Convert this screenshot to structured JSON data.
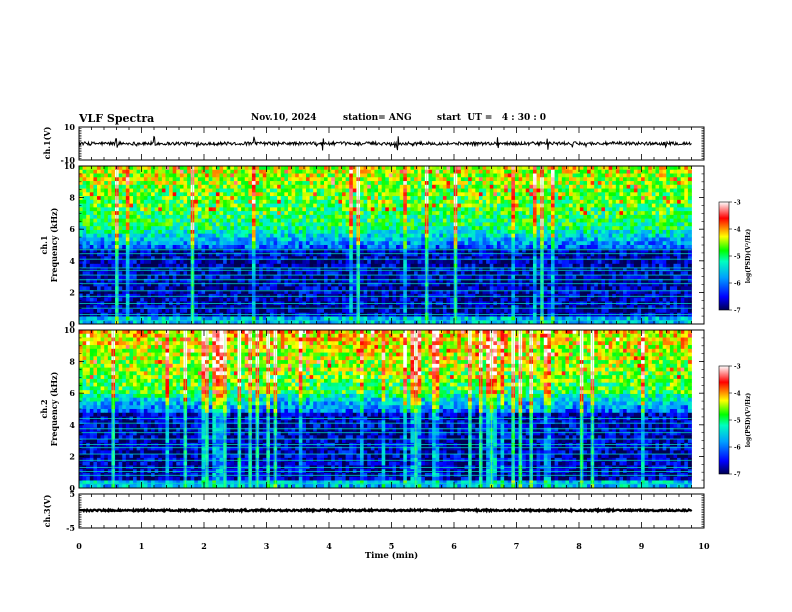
{
  "header": {
    "title": "VLF Spectra",
    "date": "Nov.10, 2024",
    "station": "station= ANG",
    "start": "start  UT =   4 : 30 : 0"
  },
  "chart_data": [
    {
      "type": "line",
      "panel": "ch1-waveform",
      "ylabel": "ch.1(V)",
      "ylim": [
        -10,
        10
      ],
      "y_ticks": [
        "10",
        "-10"
      ],
      "x_range_min": [
        0,
        9.8
      ],
      "baseline": 0,
      "noise_amplitude": 1,
      "spikes_at_min": [
        0.6,
        1.2,
        2.8,
        3.9,
        5.1,
        6.7,
        7.5
      ]
    },
    {
      "type": "heatmap",
      "panel": "ch1-spectrogram",
      "ylabel": "Frequency (kHz)",
      "channel_label": "ch.1",
      "ylim": [
        0,
        10
      ],
      "y_ticks": [
        "0",
        "2",
        "4",
        "6",
        "8",
        "10"
      ],
      "x_range_min": [
        0,
        9.8
      ],
      "colorbar": {
        "label": "log(PSD)(V²/Hz)",
        "range": [
          -7,
          -3
        ],
        "ticks": [
          "-3",
          "-4",
          "-5",
          "-6",
          "-7"
        ]
      },
      "horizontal_lines_khz": [
        0.2,
        0.6,
        1.0,
        1.3,
        1.75,
        2.1,
        2.55,
        2.8,
        3.1,
        3.4,
        3.55,
        4.1,
        4.45,
        4.7
      ]
    },
    {
      "type": "heatmap",
      "panel": "ch2-spectrogram",
      "ylabel": "Frequency (kHz)",
      "channel_label": "ch.2",
      "ylim": [
        0,
        10
      ],
      "y_ticks": [
        "0",
        "2",
        "4",
        "6",
        "8",
        "10"
      ],
      "x_range_min": [
        0,
        9.8
      ],
      "colorbar": {
        "label": "log(PSD)(V²/Hz)",
        "range": [
          -7,
          -3
        ],
        "ticks": [
          "-3",
          "-4",
          "-5",
          "-6",
          "-7"
        ]
      },
      "horizontal_lines_khz": [
        0.3,
        0.8,
        1.05,
        1.3,
        1.75,
        2.15,
        2.55,
        2.75,
        3.1,
        3.5,
        3.75,
        4.1,
        4.4
      ]
    },
    {
      "type": "line",
      "panel": "ch3-waveform",
      "ylabel": "ch.3(V)",
      "ylim": [
        -5,
        5
      ],
      "y_ticks": [
        "5",
        "-5"
      ],
      "x_range_min": [
        0,
        9.8
      ],
      "baseline": 0.2,
      "noise_amplitude": 0.25
    }
  ],
  "x_axis": {
    "label": "Time  (min)",
    "range": [
      0,
      10
    ],
    "ticks": [
      "0",
      "1",
      "2",
      "3",
      "4",
      "5",
      "6",
      "7",
      "8",
      "9",
      "10"
    ]
  }
}
